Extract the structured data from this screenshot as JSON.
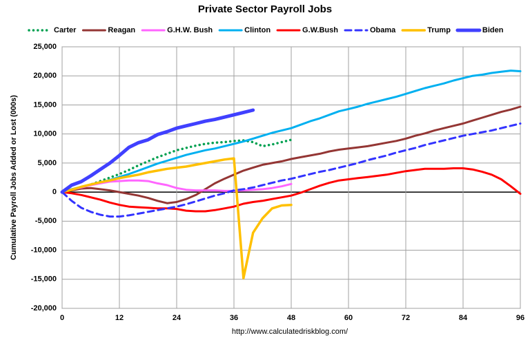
{
  "chart_data": {
    "type": "line",
    "title": "Private Sector Payroll Jobs",
    "ylabel": "Cumulative Payroll Jobs Added or  Lost (000s)",
    "source": "http://www.calculatedriskblog.com/",
    "x": [
      0,
      2,
      4,
      6,
      8,
      10,
      12,
      14,
      16,
      18,
      20,
      22,
      24,
      26,
      28,
      30,
      32,
      34,
      36,
      38,
      40,
      42,
      44,
      46,
      48,
      50,
      52,
      54,
      56,
      58,
      60,
      62,
      64,
      66,
      68,
      70,
      72,
      74,
      76,
      78,
      80,
      82,
      84,
      86,
      88,
      90,
      92,
      94,
      96
    ],
    "xlim": [
      0,
      96
    ],
    "xticks": [
      0,
      12,
      24,
      36,
      48,
      60,
      72,
      84,
      96
    ],
    "ylim": [
      -20000,
      25000
    ],
    "yticks": [
      {
        "value": -20000,
        "label": "-20,000"
      },
      {
        "value": -15000,
        "label": "-15,000"
      },
      {
        "value": -10000,
        "label": "-10,000"
      },
      {
        "value": -5000,
        "label": "-5,000"
      },
      0,
      {
        "value": 5000,
        "label": "5,000"
      },
      {
        "value": 10000,
        "label": "10,000"
      },
      {
        "value": 15000,
        "label": "15,000"
      },
      {
        "value": 20000,
        "label": "20,000"
      },
      {
        "value": 25000,
        "label": "25,000"
      }
    ],
    "grid": true,
    "series": [
      {
        "name": "Carter",
        "color": "#00a050",
        "dash": "dotted",
        "linewidth": 3.5,
        "values": [
          0,
          300,
          800,
          1300,
          1900,
          2500,
          3100,
          3800,
          4600,
          5300,
          6000,
          6600,
          7200,
          7600,
          8000,
          8300,
          8500,
          8600,
          8800,
          8900,
          8600,
          7900,
          8200,
          8600,
          9000,
          null,
          null,
          null,
          null,
          null,
          null,
          null,
          null,
          null,
          null,
          null,
          null,
          null,
          null,
          null,
          null,
          null,
          null,
          null,
          null,
          null,
          null,
          null,
          null
        ]
      },
      {
        "name": "Reagan",
        "color": "#943634",
        "dash": "solid",
        "linewidth": 3,
        "values": [
          0,
          300,
          600,
          700,
          500,
          300,
          0,
          -300,
          -600,
          -1000,
          -1500,
          -1900,
          -1700,
          -1200,
          -500,
          500,
          1500,
          2300,
          3000,
          3700,
          4200,
          4700,
          5000,
          5300,
          5700,
          6000,
          6300,
          6600,
          7000,
          7300,
          7500,
          7700,
          7900,
          8200,
          8500,
          8800,
          9200,
          9700,
          10100,
          10600,
          11000,
          11400,
          11800,
          12300,
          12800,
          13300,
          13800,
          14200,
          14700
        ]
      },
      {
        "name": "G.H.W. Bush",
        "color": "#ff66ff",
        "dash": "solid",
        "linewidth": 3,
        "values": [
          0,
          400,
          800,
          1200,
          1500,
          1800,
          1900,
          2000,
          2000,
          1900,
          1500,
          1200,
          700,
          400,
          300,
          300,
          300,
          200,
          200,
          300,
          400,
          500,
          700,
          1000,
          1400,
          null,
          null,
          null,
          null,
          null,
          null,
          null,
          null,
          null,
          null,
          null,
          null,
          null,
          null,
          null,
          null,
          null,
          null,
          null,
          null,
          null,
          null,
          null,
          null
        ]
      },
      {
        "name": "Clinton",
        "color": "#00b0f0",
        "dash": "solid",
        "linewidth": 3,
        "values": [
          0,
          500,
          900,
          1300,
          1700,
          2100,
          2600,
          3100,
          3700,
          4300,
          4900,
          5400,
          5900,
          6400,
          6800,
          7200,
          7500,
          7900,
          8300,
          8700,
          9200,
          9700,
          10200,
          10600,
          11000,
          11600,
          12200,
          12700,
          13300,
          13900,
          14300,
          14700,
          15200,
          15600,
          16000,
          16400,
          16900,
          17400,
          17900,
          18300,
          18700,
          19200,
          19600,
          20000,
          20200,
          20500,
          20700,
          20900,
          20800
        ]
      },
      {
        "name": "G.W.Bush",
        "color": "#ff0000",
        "dash": "solid",
        "linewidth": 3,
        "values": [
          0,
          -200,
          -500,
          -900,
          -1300,
          -1800,
          -2200,
          -2500,
          -2600,
          -2700,
          -2800,
          -2800,
          -2900,
          -3200,
          -3300,
          -3300,
          -3100,
          -2800,
          -2500,
          -2000,
          -1700,
          -1500,
          -1200,
          -900,
          -600,
          -100,
          500,
          1100,
          1600,
          2000,
          2200,
          2400,
          2600,
          2800,
          3000,
          3300,
          3600,
          3800,
          4000,
          4000,
          4000,
          4100,
          4100,
          3900,
          3500,
          3000,
          2200,
          1000,
          -300
        ]
      },
      {
        "name": "Obama",
        "color": "#3333ff",
        "dash": "dashed",
        "linewidth": 3,
        "values": [
          0,
          -1500,
          -2700,
          -3400,
          -3900,
          -4200,
          -4200,
          -4000,
          -3700,
          -3400,
          -3100,
          -2800,
          -2500,
          -2100,
          -1600,
          -1100,
          -600,
          -200,
          300,
          500,
          800,
          1200,
          1600,
          2000,
          2300,
          2700,
          3100,
          3500,
          3800,
          4200,
          4600,
          5000,
          5500,
          5900,
          6300,
          6800,
          7200,
          7600,
          8100,
          8500,
          8900,
          9300,
          9700,
          10000,
          10300,
          10600,
          11000,
          11400,
          11800
        ]
      },
      {
        "name": "Trump",
        "color": "#ffc000",
        "dash": "solid",
        "linewidth": 3.5,
        "values": [
          0,
          400,
          900,
          1300,
          1700,
          2000,
          2400,
          2700,
          3000,
          3400,
          3700,
          4000,
          4200,
          4400,
          4700,
          5000,
          5300,
          5600,
          5800,
          -14800,
          -7000,
          -4500,
          -2800,
          -2300,
          -2200,
          null,
          null,
          null,
          null,
          null,
          null,
          null,
          null,
          null,
          null,
          null,
          null,
          null,
          null,
          null,
          null,
          null,
          null,
          null,
          null,
          null,
          null,
          null,
          null
        ]
      },
      {
        "name": "Biden",
        "color": "#4040ff",
        "dash": "solid",
        "linewidth": 5,
        "values": [
          0,
          1200,
          1800,
          2800,
          3900,
          5000,
          6300,
          7700,
          8500,
          9000,
          9900,
          10400,
          11000,
          11400,
          11800,
          12200,
          12500,
          12900,
          13300,
          13700,
          14100,
          null,
          null,
          null,
          null,
          null,
          null,
          null,
          null,
          null,
          null,
          null,
          null,
          null,
          null,
          null,
          null,
          null,
          null,
          null,
          null,
          null,
          null,
          null,
          null,
          null,
          null,
          null,
          null
        ]
      }
    ]
  }
}
